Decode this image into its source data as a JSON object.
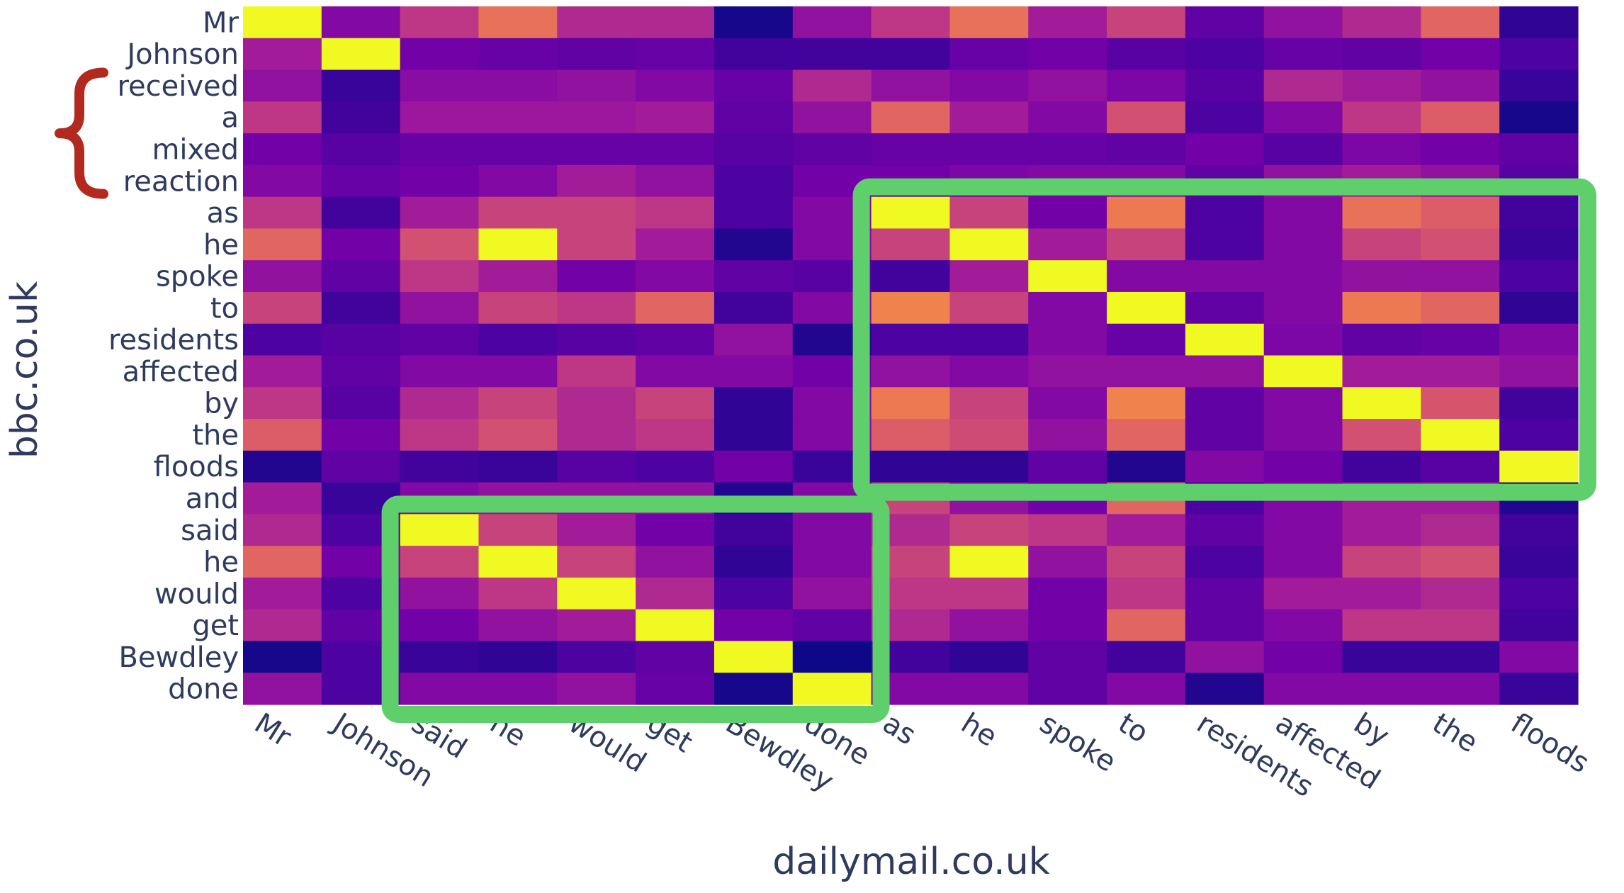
{
  "chart_data": {
    "type": "heatmap",
    "title": "",
    "xlabel": "dailymail.co.uk",
    "ylabel": "bbc.co.uk",
    "x": [
      "Mr",
      "Johnson",
      "said",
      "he",
      "would",
      "get",
      "Bewdley",
      "done",
      "as",
      "he",
      "spoke",
      "to",
      "residents",
      "affected",
      "by",
      "the",
      "floods"
    ],
    "y": [
      "Mr",
      "Johnson",
      "received",
      "a",
      "mixed",
      "reaction",
      "as",
      "he",
      "spoke",
      "to",
      "residents",
      "affected",
      "by",
      "the",
      "floods",
      "and",
      "said",
      "he",
      "would",
      "get",
      "Bewdley",
      "done"
    ],
    "z": [
      [
        1.0,
        0.3,
        0.5,
        0.72,
        0.45,
        0.45,
        0.02,
        0.35,
        0.5,
        0.72,
        0.4,
        0.55,
        0.2,
        0.35,
        0.45,
        0.68,
        0.08
      ],
      [
        0.4,
        1.0,
        0.25,
        0.22,
        0.2,
        0.22,
        0.12,
        0.12,
        0.12,
        0.22,
        0.25,
        0.18,
        0.15,
        0.22,
        0.2,
        0.25,
        0.15
      ],
      [
        0.35,
        0.1,
        0.32,
        0.32,
        0.35,
        0.3,
        0.22,
        0.45,
        0.35,
        0.3,
        0.35,
        0.28,
        0.18,
        0.45,
        0.4,
        0.35,
        0.1
      ],
      [
        0.5,
        0.12,
        0.38,
        0.38,
        0.38,
        0.4,
        0.2,
        0.35,
        0.68,
        0.4,
        0.3,
        0.6,
        0.15,
        0.3,
        0.5,
        0.65,
        0.02
      ],
      [
        0.25,
        0.18,
        0.22,
        0.22,
        0.22,
        0.22,
        0.18,
        0.2,
        0.22,
        0.22,
        0.22,
        0.2,
        0.25,
        0.18,
        0.28,
        0.25,
        0.2
      ],
      [
        0.3,
        0.22,
        0.25,
        0.3,
        0.4,
        0.35,
        0.15,
        0.25,
        0.25,
        0.28,
        0.3,
        0.3,
        0.2,
        0.35,
        0.4,
        0.35,
        0.18
      ],
      [
        0.5,
        0.12,
        0.4,
        0.55,
        0.55,
        0.5,
        0.15,
        0.3,
        1.0,
        0.55,
        0.25,
        0.75,
        0.15,
        0.3,
        0.72,
        0.65,
        0.12
      ],
      [
        0.68,
        0.25,
        0.6,
        1.0,
        0.55,
        0.4,
        0.05,
        0.3,
        0.55,
        1.0,
        0.4,
        0.55,
        0.15,
        0.3,
        0.55,
        0.6,
        0.1
      ],
      [
        0.35,
        0.2,
        0.5,
        0.4,
        0.25,
        0.3,
        0.2,
        0.18,
        0.12,
        0.4,
        1.0,
        0.3,
        0.3,
        0.3,
        0.35,
        0.35,
        0.15
      ],
      [
        0.55,
        0.12,
        0.35,
        0.55,
        0.5,
        0.68,
        0.12,
        0.3,
        0.78,
        0.55,
        0.3,
        1.0,
        0.2,
        0.3,
        0.75,
        0.68,
        0.08
      ],
      [
        0.15,
        0.18,
        0.2,
        0.15,
        0.18,
        0.2,
        0.35,
        0.05,
        0.15,
        0.15,
        0.3,
        0.22,
        1.0,
        0.28,
        0.2,
        0.22,
        0.3
      ],
      [
        0.4,
        0.2,
        0.3,
        0.3,
        0.5,
        0.3,
        0.3,
        0.25,
        0.35,
        0.3,
        0.35,
        0.35,
        0.35,
        1.0,
        0.4,
        0.4,
        0.35
      ],
      [
        0.5,
        0.18,
        0.45,
        0.55,
        0.45,
        0.55,
        0.08,
        0.3,
        0.75,
        0.55,
        0.3,
        0.78,
        0.2,
        0.3,
        1.0,
        0.62,
        0.12
      ],
      [
        0.65,
        0.25,
        0.5,
        0.6,
        0.45,
        0.5,
        0.08,
        0.3,
        0.65,
        0.58,
        0.35,
        0.68,
        0.2,
        0.3,
        0.6,
        1.0,
        0.15
      ],
      [
        0.05,
        0.2,
        0.12,
        0.1,
        0.18,
        0.15,
        0.25,
        0.1,
        0.08,
        0.08,
        0.2,
        0.05,
        0.3,
        0.25,
        0.12,
        0.18,
        1.0
      ],
      [
        0.4,
        0.1,
        0.3,
        0.35,
        0.35,
        0.35,
        0.05,
        0.3,
        0.55,
        0.35,
        0.25,
        0.68,
        0.15,
        0.3,
        0.4,
        0.4,
        0.05
      ],
      [
        0.45,
        0.15,
        1.0,
        0.55,
        0.4,
        0.25,
        0.12,
        0.3,
        0.45,
        0.55,
        0.5,
        0.4,
        0.2,
        0.3,
        0.4,
        0.45,
        0.12
      ],
      [
        0.68,
        0.25,
        0.55,
        1.0,
        0.55,
        0.35,
        0.08,
        0.3,
        0.55,
        1.0,
        0.35,
        0.55,
        0.15,
        0.3,
        0.55,
        0.6,
        0.1
      ],
      [
        0.4,
        0.15,
        0.35,
        0.5,
        1.0,
        0.45,
        0.15,
        0.35,
        0.5,
        0.5,
        0.25,
        0.5,
        0.2,
        0.4,
        0.4,
        0.45,
        0.15
      ],
      [
        0.45,
        0.2,
        0.25,
        0.35,
        0.4,
        1.0,
        0.25,
        0.2,
        0.45,
        0.35,
        0.25,
        0.68,
        0.2,
        0.3,
        0.5,
        0.5,
        0.12
      ],
      [
        0.02,
        0.15,
        0.1,
        0.08,
        0.15,
        0.2,
        1.0,
        0.0,
        0.12,
        0.08,
        0.2,
        0.12,
        0.35,
        0.25,
        0.1,
        0.1,
        0.3
      ],
      [
        0.35,
        0.15,
        0.3,
        0.3,
        0.35,
        0.22,
        0.02,
        1.0,
        0.3,
        0.3,
        0.2,
        0.3,
        0.05,
        0.3,
        0.3,
        0.3,
        0.1
      ]
    ],
    "colorscale": "plasma",
    "grid": false,
    "legend": "none",
    "annotations": [
      {
        "type": "highlight-box",
        "color": "#5ecf6a",
        "x_from": "as",
        "x_to": "floods",
        "y_from": "as",
        "y_to": "floods"
      },
      {
        "type": "highlight-box",
        "color": "#5ecf6a",
        "x_from": "said",
        "x_to": "done",
        "y_from": "said",
        "y_to": "done"
      },
      {
        "type": "curly-brace",
        "color": "#b22a1e",
        "y_from": "received",
        "y_to": "reaction"
      }
    ]
  }
}
